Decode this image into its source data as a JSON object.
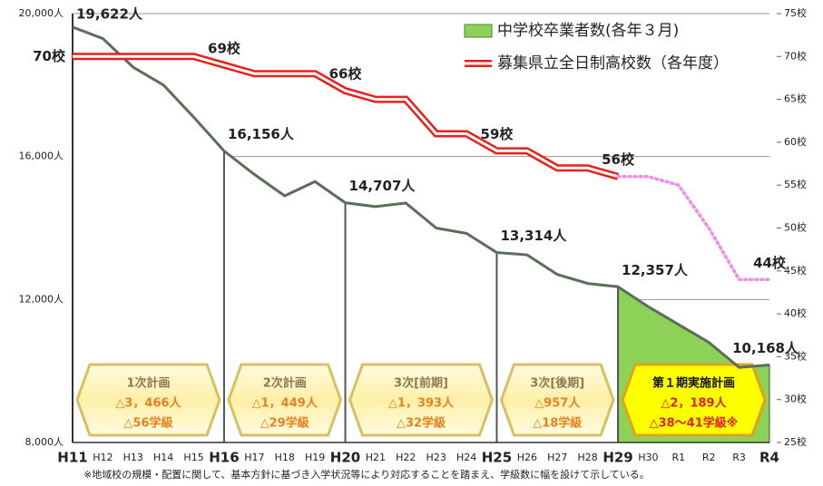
{
  "chart_data": {
    "type": "line",
    "categories": [
      "H11",
      "H12",
      "H13",
      "H14",
      "H15",
      "H16",
      "H17",
      "H18",
      "H19",
      "H20",
      "H21",
      "H22",
      "H23",
      "H24",
      "H25",
      "H26",
      "H27",
      "H28",
      "H29",
      "H30",
      "R1",
      "R2",
      "R3",
      "R4"
    ],
    "forecast_from": "H29",
    "series": [
      {
        "name": "中学校卒業者数(各年３月)",
        "color": "#8ed158",
        "style": "area",
        "values": [
          19622,
          19300,
          18500,
          18000,
          17100,
          16156,
          15500,
          14900,
          15300,
          14707,
          14600,
          14700,
          14000,
          13850,
          13314,
          13250,
          12700,
          12450,
          12357,
          11800,
          11300,
          10800,
          10100,
          10168
        ],
        "value_labels": [
          "19,622人",
          null,
          null,
          null,
          null,
          "16,156人",
          null,
          null,
          null,
          "14,707人",
          null,
          null,
          null,
          null,
          "13,314人",
          null,
          null,
          null,
          "12,357人",
          null,
          null,
          null,
          null,
          "10,168人"
        ]
      },
      {
        "name": "募集県立全日制高校数（各年度）",
        "color": "#e8201c",
        "style": "double",
        "axis": "y2",
        "values": [
          70,
          70,
          70,
          70,
          70,
          69,
          68,
          68,
          68,
          66,
          65,
          65,
          61,
          61,
          59,
          59,
          57,
          57,
          56,
          null,
          null,
          null,
          null,
          null
        ],
        "value_labels": [
          "70校",
          null,
          null,
          null,
          null,
          "69校",
          null,
          null,
          null,
          "66校",
          null,
          null,
          null,
          null,
          "59校",
          null,
          null,
          null,
          "56校",
          null,
          null,
          null,
          null,
          null
        ]
      },
      {
        "color": "#f08ce8",
        "style": "dotted",
        "axis": "y2",
        "values": [
          null,
          null,
          null,
          null,
          null,
          null,
          null,
          null,
          null,
          null,
          null,
          null,
          null,
          null,
          null,
          null,
          null,
          null,
          56,
          56,
          55,
          50,
          44,
          44
        ],
        "value_labels": [
          null,
          null,
          null,
          null,
          null,
          null,
          null,
          null,
          null,
          null,
          null,
          null,
          null,
          null,
          null,
          null,
          null,
          null,
          null,
          null,
          null,
          null,
          null,
          "44校"
        ]
      }
    ],
    "ylim": [
      8000,
      20000
    ],
    "yticks": [
      {
        "value": 8000,
        "label": "8,000人"
      },
      {
        "value": 12000,
        "label": "12,000人"
      },
      {
        "value": 16000,
        "label": "16,000人"
      },
      {
        "value": 20000,
        "label": "20,000人"
      }
    ],
    "y2lim": [
      25,
      75
    ],
    "y2ticks": [
      {
        "value": 25,
        "label": "25校"
      },
      {
        "value": 30,
        "label": "30校"
      },
      {
        "value": 35,
        "label": "35校"
      },
      {
        "value": 40,
        "label": "40校"
      },
      {
        "value": 45,
        "label": "45校"
      },
      {
        "value": 50,
        "label": "50校"
      },
      {
        "value": 55,
        "label": "55校"
      },
      {
        "value": 60,
        "label": "60校"
      },
      {
        "value": 65,
        "label": "65校"
      },
      {
        "value": 70,
        "label": "70校"
      },
      {
        "value": 75,
        "label": "75校"
      }
    ],
    "grid": true,
    "plans": [
      {
        "from": "H11",
        "to": "H16",
        "lines": [
          "1次計画",
          "△3，466人",
          "△56学級"
        ]
      },
      {
        "from": "H16",
        "to": "H20",
        "lines": [
          "2次計画",
          "△1，449人",
          "△29学級"
        ]
      },
      {
        "from": "H20",
        "to": "H25",
        "lines": [
          "3次[前期]",
          "△1，393人",
          "△32学級"
        ]
      },
      {
        "from": "H25",
        "to": "H29",
        "lines": [
          "3次[後期]",
          "△957人",
          "△18学級"
        ]
      },
      {
        "from": "H29",
        "to": "R4",
        "highlight": true,
        "lines": [
          "第１期実施計画",
          "△2，189人",
          "△38～41学級※"
        ]
      }
    ],
    "footnote": "※地域校の規模・配置に関して、基本方針に基づき入学状況等により対応することを踏まえ、学級数に幅を設けて示している。"
  }
}
